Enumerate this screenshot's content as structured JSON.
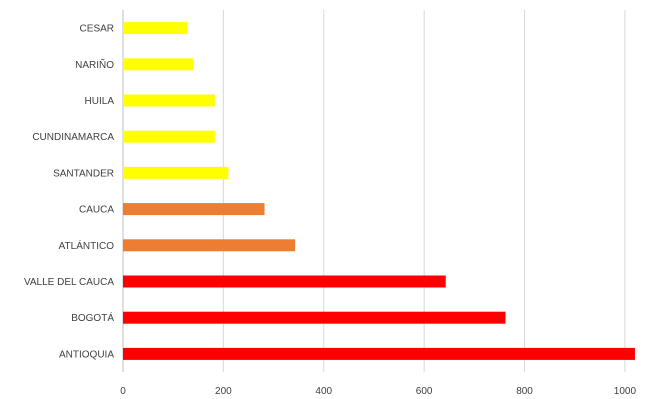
{
  "chart_data": {
    "type": "bar",
    "orientation": "horizontal",
    "categories": [
      "CESAR",
      "NARIÑO",
      "HUILA",
      "CUNDINAMARCA",
      "SANTANDER",
      "CAUCA",
      "ATLÁNTICO",
      "VALLE DEL CAUCA",
      "BOGOTÁ",
      "ANTIOQUIA"
    ],
    "values": [
      128,
      140,
      183,
      183,
      210,
      282,
      343,
      643,
      762,
      1020
    ],
    "bar_colors": [
      "#ffff00",
      "#ffff00",
      "#ffff00",
      "#ffff00",
      "#ffff00",
      "#ed7d31",
      "#ed7d31",
      "#ff0000",
      "#ff0000",
      "#ff0000"
    ],
    "xlim": [
      0,
      1040
    ],
    "x_ticks": [
      0,
      200,
      400,
      600,
      800,
      1000
    ],
    "x_tick_labels": [
      "0",
      "200",
      "400",
      "600",
      "800",
      "1000"
    ],
    "grid": "vertical",
    "legend": "none"
  }
}
